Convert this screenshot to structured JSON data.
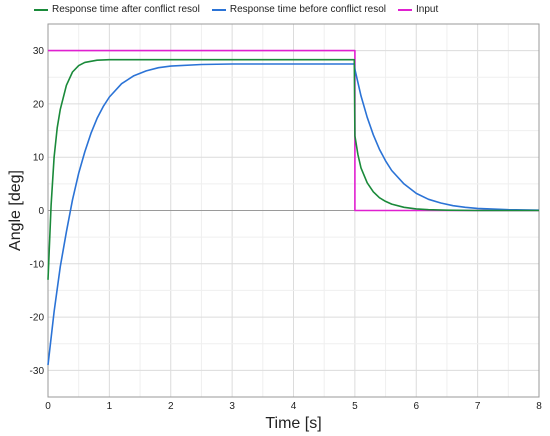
{
  "chart_data": {
    "type": "line",
    "xlabel": "Time [s]",
    "ylabel": "Angle [deg]",
    "xlim": [
      0,
      8
    ],
    "ylim": [
      -35,
      35
    ],
    "x_ticks": [
      0,
      1,
      2,
      3,
      4,
      5,
      6,
      7,
      8
    ],
    "y_ticks": [
      -30,
      -20,
      -10,
      0,
      10,
      20,
      30
    ],
    "grid": true,
    "legend_position": "top",
    "series": [
      {
        "name": "Response time after conflict resol",
        "color": "#1a8a3a",
        "x": [
          0,
          0.05,
          0.1,
          0.15,
          0.2,
          0.3,
          0.4,
          0.5,
          0.6,
          0.8,
          1.0,
          1.2,
          1.5,
          2.0,
          3.0,
          4.0,
          4.99,
          5.0,
          5.05,
          5.1,
          5.2,
          5.3,
          5.4,
          5.5,
          5.6,
          5.8,
          6.0,
          6.2,
          6.5,
          7.0,
          8.0
        ],
        "y": [
          -13,
          1,
          10,
          15.5,
          19,
          23.5,
          26,
          27.2,
          27.8,
          28.2,
          28.3,
          28.3,
          28.3,
          28.3,
          28.3,
          28.3,
          28.3,
          14,
          10.5,
          8,
          5.2,
          3.5,
          2.4,
          1.7,
          1.2,
          0.6,
          0.3,
          0.15,
          0.05,
          0,
          0
        ]
      },
      {
        "name": "Response time before conflict resol",
        "color": "#2b73d6",
        "x": [
          0,
          0.1,
          0.2,
          0.3,
          0.4,
          0.5,
          0.6,
          0.7,
          0.8,
          0.9,
          1.0,
          1.2,
          1.4,
          1.6,
          1.8,
          2.0,
          2.5,
          3.0,
          4.0,
          4.99,
          5.0,
          5.1,
          5.2,
          5.3,
          5.4,
          5.5,
          5.6,
          5.8,
          6.0,
          6.2,
          6.4,
          6.6,
          6.8,
          7.0,
          7.5,
          8.0
        ],
        "y": [
          -29,
          -19,
          -10.5,
          -4,
          2,
          7,
          11,
          14.5,
          17.3,
          19.5,
          21.3,
          23.8,
          25.3,
          26.2,
          26.8,
          27.1,
          27.4,
          27.5,
          27.5,
          27.5,
          26.5,
          21.5,
          17.5,
          14.2,
          11.5,
          9.3,
          7.5,
          5,
          3.2,
          2.1,
          1.4,
          0.9,
          0.6,
          0.4,
          0.15,
          0.05
        ]
      },
      {
        "name": "Input",
        "color": "#e020d0",
        "x": [
          0,
          5,
          5,
          8
        ],
        "y": [
          30,
          30,
          0,
          0
        ]
      }
    ]
  }
}
